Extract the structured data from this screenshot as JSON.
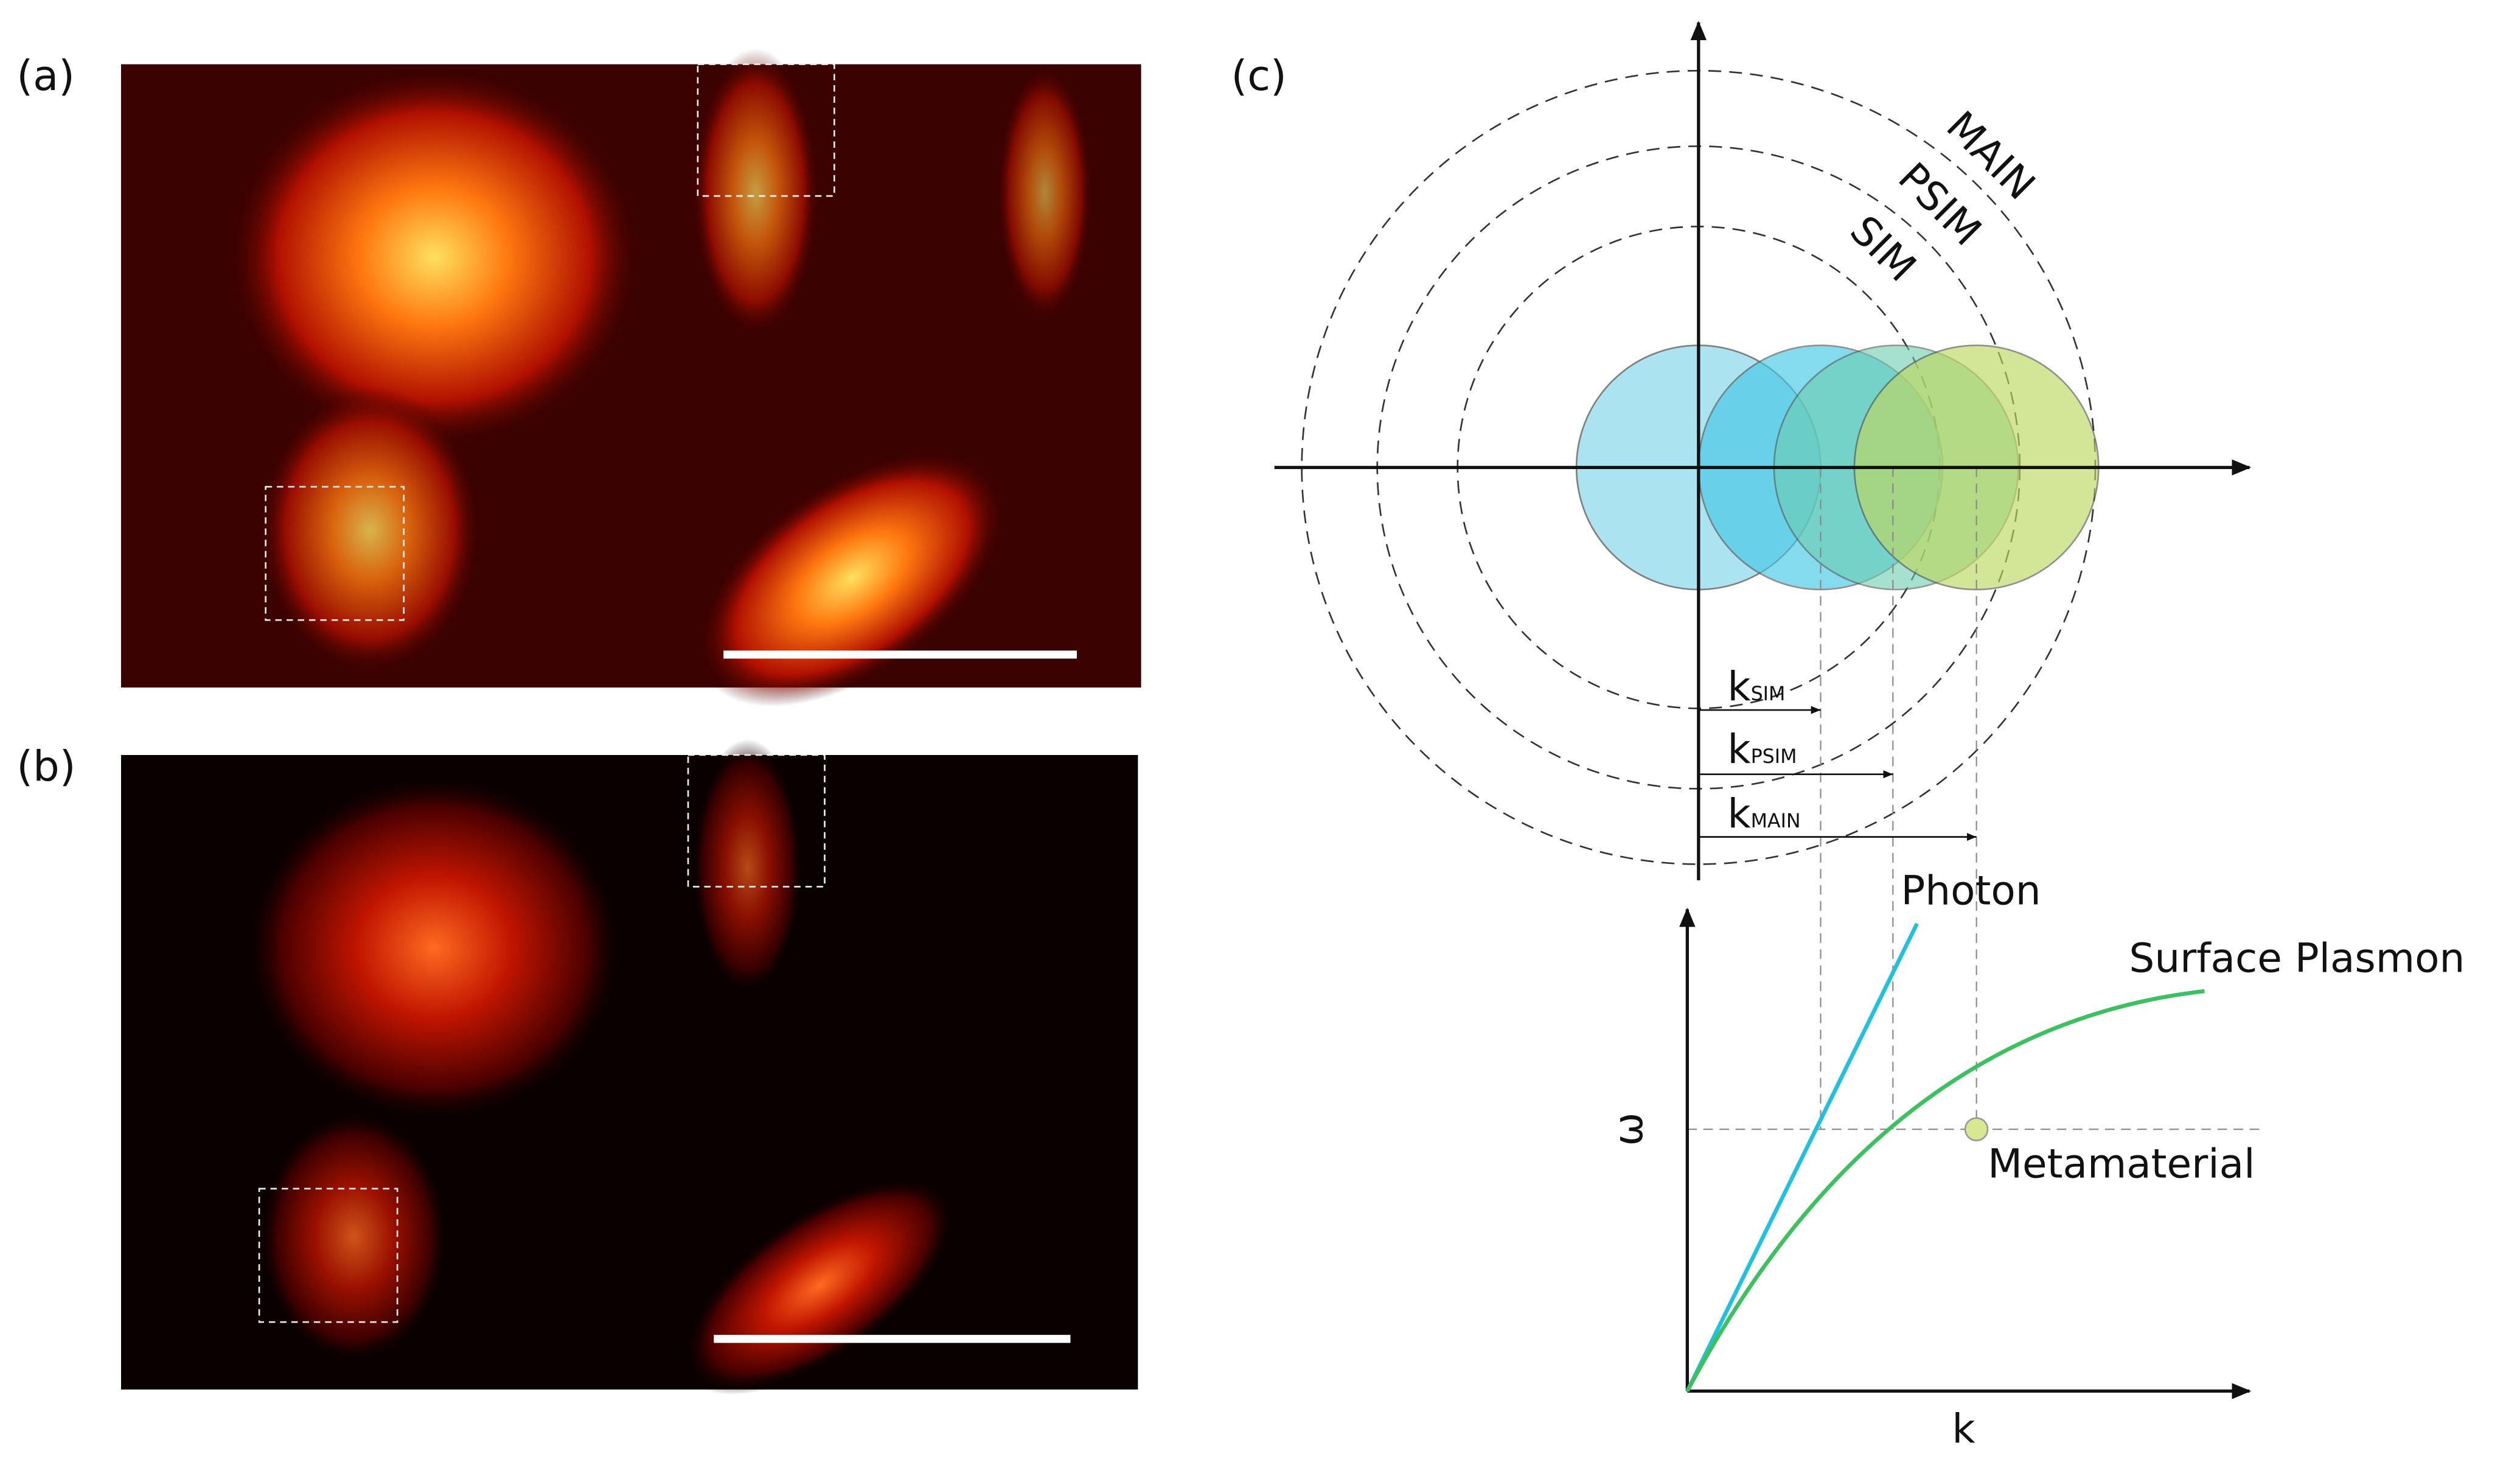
{
  "panels": [
    {
      "label": "(a)"
    },
    {
      "label": "(b)"
    },
    {
      "label": "(c)"
    }
  ],
  "circle_labels": [
    "MAIN",
    "PSIM",
    "SIM"
  ],
  "k_labels": [
    {
      "symbol": "k",
      "subscript": "SIM"
    },
    {
      "symbol": "k",
      "subscript": "PSIM"
    },
    {
      "symbol": "k",
      "subscript": "MAIN"
    }
  ],
  "dispersion": {
    "y_axis": "ω",
    "x_axis": "k",
    "curves": [
      "Photon",
      "Surface Plasmon"
    ],
    "point": "Metamaterial"
  }
}
